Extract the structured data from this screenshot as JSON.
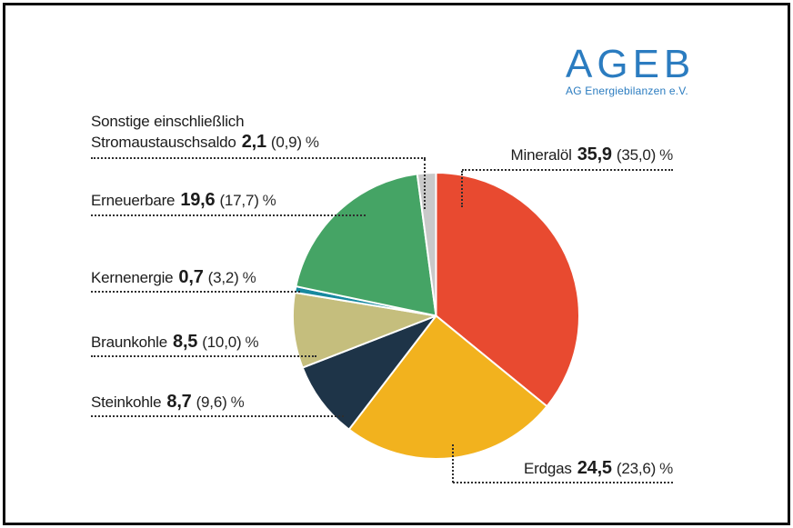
{
  "logo": {
    "title": "AGEB",
    "subtitle": "AG Energiebilanzen e.V.",
    "color": "#2b7cc0"
  },
  "chart_data": {
    "type": "pie",
    "unit": "%",
    "start_angle_deg_from_top_clockwise": 0,
    "direction": "clockwise",
    "slice_stroke": "#ffffff",
    "slices": [
      {
        "id": "mineraloel",
        "label": "Mineralöl",
        "value": 35.9,
        "value_prev": 35.0,
        "color": "#e84a30"
      },
      {
        "id": "erdgas",
        "label": "Erdgas",
        "value": 24.5,
        "value_prev": 23.6,
        "color": "#f2b21e"
      },
      {
        "id": "steinkohle",
        "label": "Steinkohle",
        "value": 8.7,
        "value_prev": 9.6,
        "color": "#1e3448"
      },
      {
        "id": "braunkohle",
        "label": "Braunkohle",
        "value": 8.5,
        "value_prev": 10.0,
        "color": "#c5be7d"
      },
      {
        "id": "kernenergie",
        "label": "Kernenergie",
        "value": 0.7,
        "value_prev": 3.2,
        "color": "#17899f"
      },
      {
        "id": "erneuerbare",
        "label": "Erneuerbare",
        "value": 19.6,
        "value_prev": 17.7,
        "color": "#45a465"
      },
      {
        "id": "sonstige",
        "label": "Sonstige einschließlich Stromaustauschsaldo",
        "value": 2.1,
        "value_prev": 0.9,
        "color": "#c9c9c9"
      }
    ]
  },
  "labels": {
    "sonstige": {
      "line1": "Sonstige einschließlich",
      "name": "Stromaustauschsaldo",
      "value": "2,1",
      "paren": "(0,9)",
      "pct": "%"
    },
    "mineraloel": {
      "name": "Mineralöl",
      "value": "35,9",
      "paren": "(35,0)",
      "pct": "%"
    },
    "erneuerbare": {
      "name": "Erneuerbare",
      "value": "19,6",
      "paren": "(17,7)",
      "pct": "%"
    },
    "kernenergie": {
      "name": "Kernenergie",
      "value": "0,7",
      "paren": "(3,2)",
      "pct": "%"
    },
    "braunkohle": {
      "name": "Braunkohle",
      "value": "8,5",
      "paren": "(10,0)",
      "pct": "%"
    },
    "steinkohle": {
      "name": "Steinkohle",
      "value": "8,7",
      "paren": "(9,6)",
      "pct": "%"
    },
    "erdgas": {
      "name": "Erdgas",
      "value": "24,5",
      "paren": "(23,6)",
      "pct": "%"
    }
  }
}
